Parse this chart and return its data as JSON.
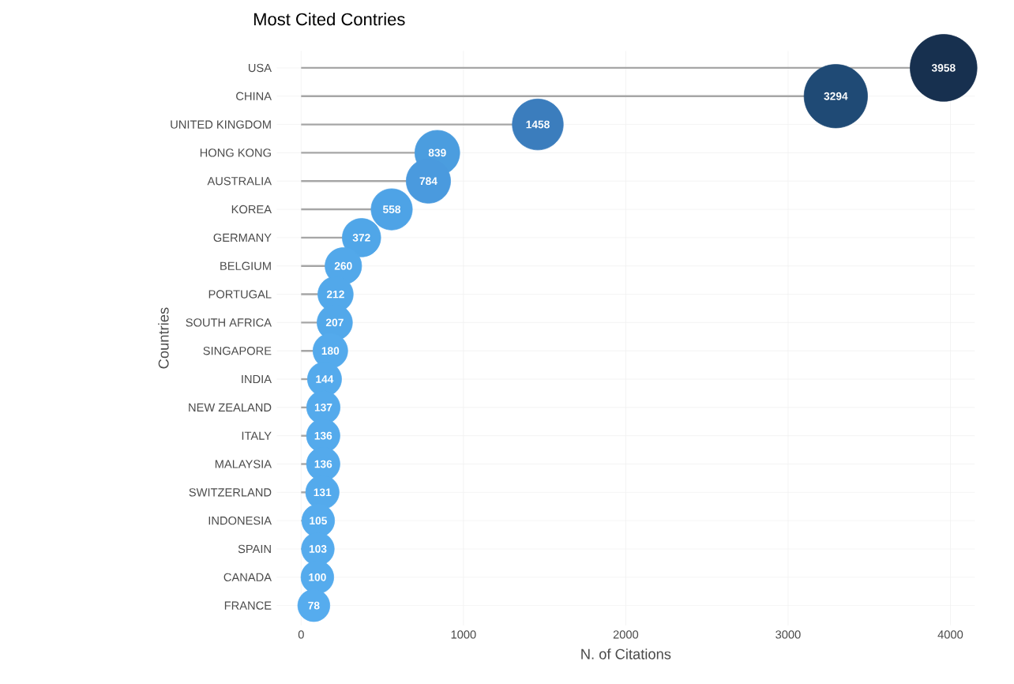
{
  "chart_data": {
    "type": "lollipop",
    "title": "Most Cited Contries",
    "xlabel": "N. of Citations",
    "ylabel": "Countries",
    "orientation": "horizontal",
    "categories": [
      "USA",
      "CHINA",
      "UNITED KINGDOM",
      "HONG KONG",
      "AUSTRALIA",
      "KOREA",
      "GERMANY",
      "BELGIUM",
      "PORTUGAL",
      "SOUTH AFRICA",
      "SINGAPORE",
      "INDIA",
      "NEW ZEALAND",
      "ITALY",
      "MALAYSIA",
      "SWITZERLAND",
      "INDONESIA",
      "SPAIN",
      "CANADA",
      "FRANCE"
    ],
    "values": [
      3958,
      3294,
      1458,
      839,
      784,
      558,
      372,
      260,
      212,
      207,
      180,
      144,
      137,
      136,
      136,
      131,
      105,
      103,
      100,
      78
    ],
    "colors": [
      "#17304f",
      "#1f4a75",
      "#3b7dbd",
      "#4b9ddf",
      "#4a9ade",
      "#4ea3e6",
      "#50a6e8",
      "#52a8ea",
      "#52a8ea",
      "#52a8ea",
      "#54aaec",
      "#54aaec",
      "#54aaec",
      "#54aaec",
      "#54aaec",
      "#54aaec",
      "#55abed",
      "#55abed",
      "#55abed",
      "#56acee"
    ],
    "sizes": [
      1,
      0.9,
      0.58,
      0.45,
      0.44,
      0.38,
      0.33,
      0.3,
      0.28,
      0.28,
      0.27,
      0.26,
      0.25,
      0.25,
      0.25,
      0.25,
      0.24,
      0.24,
      0.24,
      0.23
    ],
    "xlim": [
      -150,
      4150
    ],
    "xticks": [
      0,
      1000,
      2000,
      3000,
      4000
    ],
    "grid": true,
    "data_labels": true
  }
}
